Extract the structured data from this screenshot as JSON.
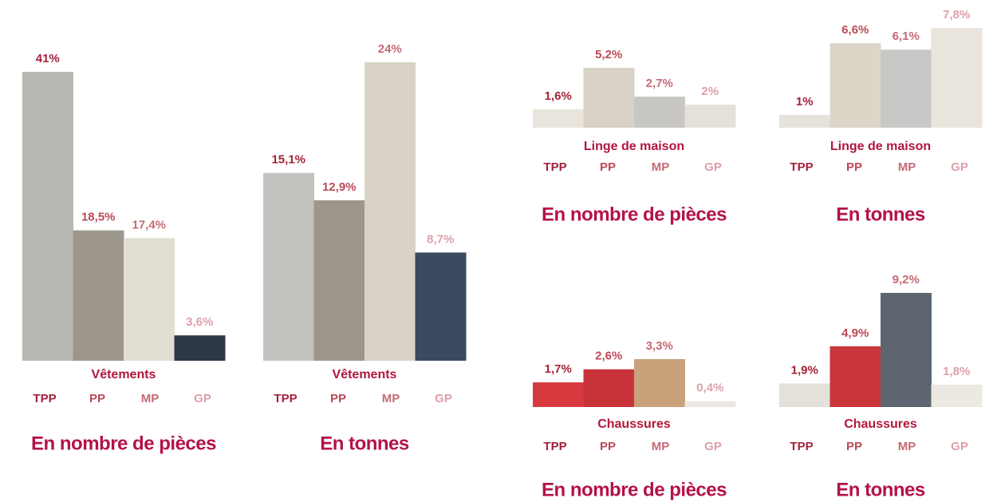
{
  "chart_data": [
    {
      "type": "bar",
      "title": "Vêtements",
      "caption": "En nombre de pièces",
      "categories": [
        "TPP",
        "PP",
        "MP",
        "GP"
      ],
      "values": [
        41,
        18.5,
        17.4,
        3.6
      ],
      "value_labels": [
        "41%",
        "18,5%",
        "17,4%",
        "3,6%"
      ],
      "label_colors": [
        "#a3223a",
        "#bb4a57",
        "#c56a75",
        "#dca0a8"
      ],
      "bar_colors": [
        "#b9b7b3",
        "#9d968c",
        "#e2ddd3",
        "#2d3746"
      ]
    },
    {
      "type": "bar",
      "title": "Vêtements",
      "caption": "En tonnes",
      "categories": [
        "TPP",
        "PP",
        "MP",
        "GP"
      ],
      "values": [
        15.1,
        12.9,
        24,
        8.7
      ],
      "value_labels": [
        "15,1%",
        "12,9%",
        "24%",
        "8,7%"
      ],
      "label_colors": [
        "#a3223a",
        "#bb4a57",
        "#c56a75",
        "#dca0a8"
      ],
      "bar_colors": [
        "#c4c2be",
        "#9d968c",
        "#d9d3c7",
        "#3a4a5e"
      ]
    },
    {
      "type": "bar",
      "title": "Linge de maison",
      "caption": "En nombre de pièces",
      "categories": [
        "TPP",
        "PP",
        "MP",
        "GP"
      ],
      "values": [
        1.6,
        5.2,
        2.7,
        2
      ],
      "value_labels": [
        "1,6%",
        "5,2%",
        "2,7%",
        "2%"
      ],
      "label_colors": [
        "#a3223a",
        "#bb4a57",
        "#c56a75",
        "#dca0a8"
      ],
      "bar_colors": [
        "#e9e4dc",
        "#d8d2c6",
        "#c9c7c3",
        "#e6e1d8"
      ]
    },
    {
      "type": "bar",
      "title": "Linge de maison",
      "caption": "En tonnes",
      "categories": [
        "TPP",
        "PP",
        "MP",
        "GP"
      ],
      "values": [
        1,
        6.6,
        6.1,
        7.8
      ],
      "value_labels": [
        "1%",
        "6,6%",
        "6,1%",
        "7,8%"
      ],
      "label_colors": [
        "#a3223a",
        "#bb4a57",
        "#c56a75",
        "#dca0a8"
      ],
      "bar_colors": [
        "#e6e2dc",
        "#ddd5c8",
        "#c8c8c6",
        "#e9e5dd"
      ]
    },
    {
      "type": "bar",
      "title": "Chaussures",
      "caption": "En nombre de pièces",
      "categories": [
        "TPP",
        "PP",
        "MP",
        "GP"
      ],
      "values": [
        1.7,
        2.6,
        3.3,
        0.4
      ],
      "value_labels": [
        "1,7%",
        "2,6%",
        "3,3%",
        "0,4%"
      ],
      "label_colors": [
        "#a3223a",
        "#bb4a57",
        "#c56a75",
        "#dca0a8"
      ],
      "bar_colors": [
        "#d63a3f",
        "#c9343a",
        "#c9a27c",
        "#ece8e2"
      ]
    },
    {
      "type": "bar",
      "title": "Chaussures",
      "caption": "En tonnes",
      "categories": [
        "TPP",
        "PP",
        "MP",
        "GP"
      ],
      "values": [
        1.9,
        4.9,
        9.2,
        1.8
      ],
      "value_labels": [
        "1,9%",
        "4,9%",
        "9,2%",
        "1,8%"
      ],
      "label_colors": [
        "#a3223a",
        "#bb4a57",
        "#c56a75",
        "#dca0a8"
      ],
      "bar_colors": [
        "#e4e0da",
        "#c8363c",
        "#5d6570",
        "#ece8e2"
      ]
    }
  ]
}
